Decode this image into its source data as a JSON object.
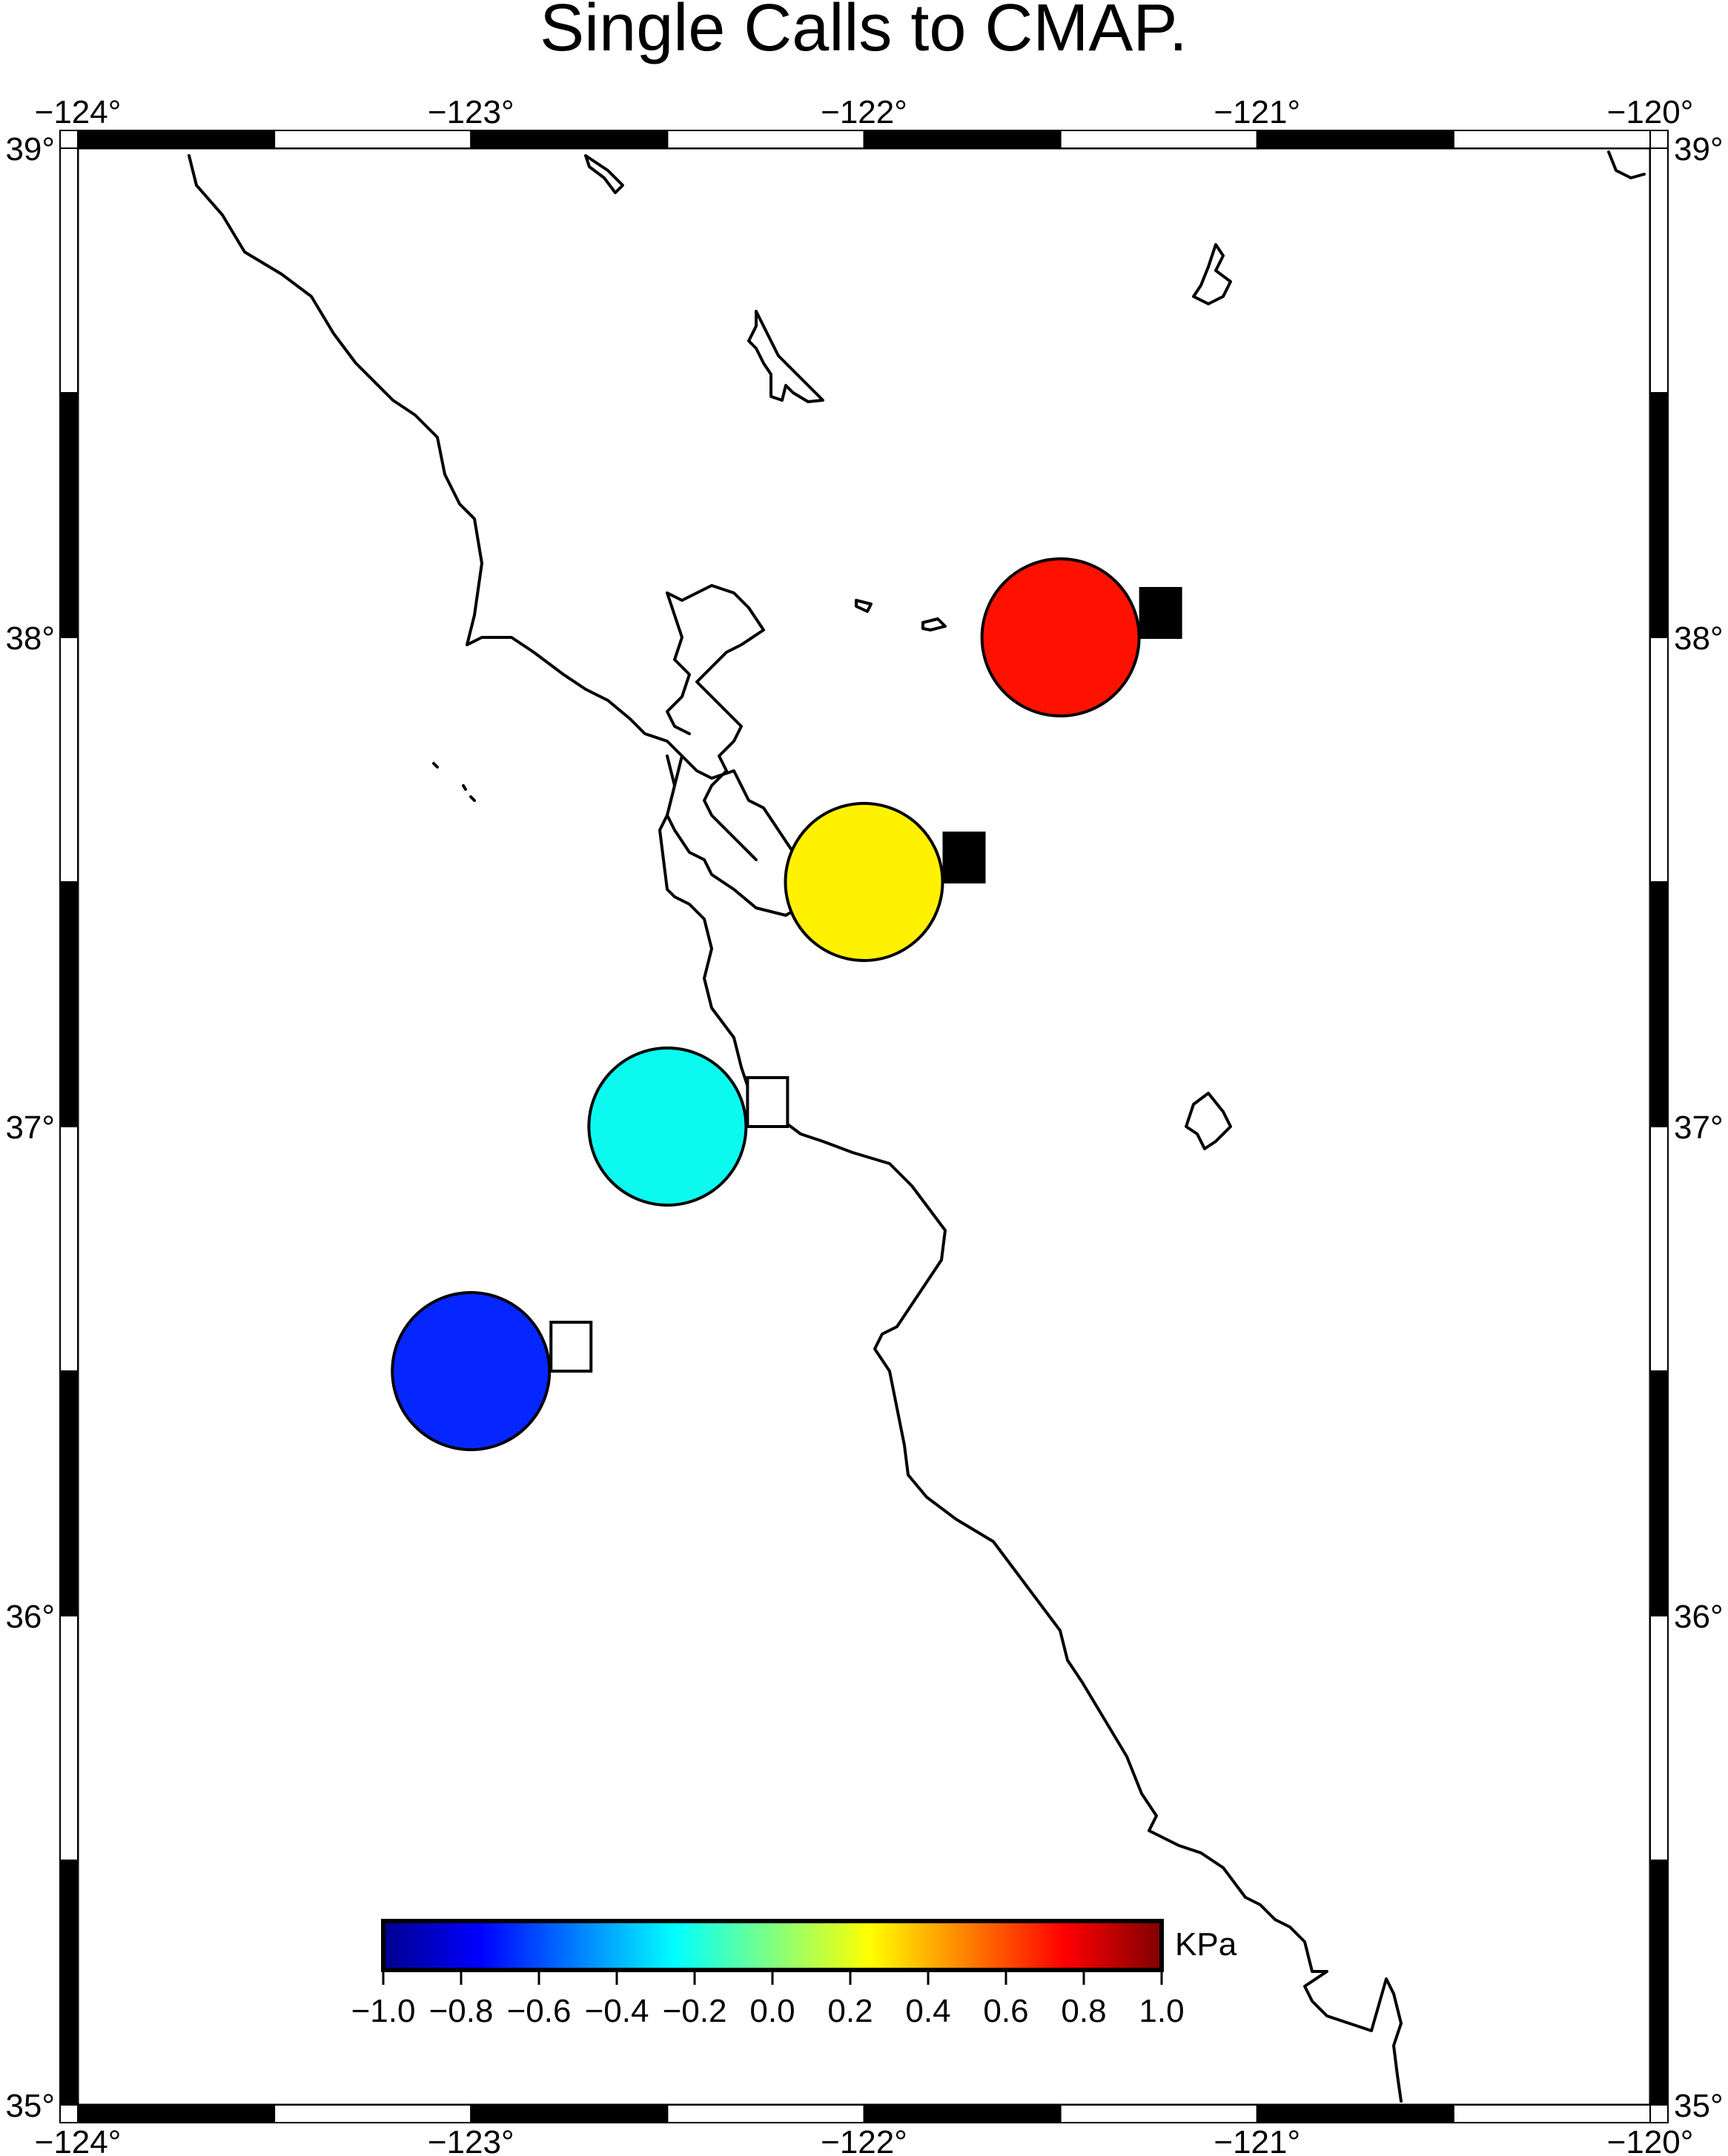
{
  "title": "Single Calls to CMAP.",
  "frame": {
    "lon_range": [
      -124,
      -120
    ],
    "lat_range": [
      35,
      39
    ],
    "lon_ticks": [
      -124,
      -123,
      -122,
      -121,
      -120
    ],
    "lat_ticks": [
      35,
      36,
      37,
      38,
      39
    ],
    "lon_tick_labels": [
      "−124°",
      "−123°",
      "−122°",
      "−121°",
      "−120°"
    ],
    "lat_tick_labels": [
      "35°",
      "36°",
      "37°",
      "38°",
      "39°"
    ]
  },
  "points": [
    {
      "lon": -121.5,
      "lat": 38.0,
      "value": 0.8,
      "color": "#ff1100",
      "square_filled": true
    },
    {
      "lon": -122.0,
      "lat": 37.5,
      "value": 0.2,
      "color": "#fff200",
      "square_filled": true
    },
    {
      "lon": -122.5,
      "lat": 37.0,
      "value": -0.3,
      "color": "#0cf9f0",
      "square_filled": false
    },
    {
      "lon": -123.0,
      "lat": 36.5,
      "value": -0.8,
      "color": "#0626ff",
      "square_filled": false
    }
  ],
  "colorbar": {
    "unit": "KPa",
    "range": [
      -1.0,
      1.0
    ],
    "tick_labels": [
      "−1.0",
      "−0.8",
      "−0.6",
      "−0.4",
      "−0.2",
      "0.0",
      "0.2",
      "0.4",
      "0.6",
      "0.8",
      "1.0"
    ],
    "colors": [
      "#00008e",
      "#0000ff",
      "#0080ff",
      "#00ffff",
      "#80ff80",
      "#ffff00",
      "#ff8000",
      "#ff0000",
      "#800000"
    ]
  }
}
